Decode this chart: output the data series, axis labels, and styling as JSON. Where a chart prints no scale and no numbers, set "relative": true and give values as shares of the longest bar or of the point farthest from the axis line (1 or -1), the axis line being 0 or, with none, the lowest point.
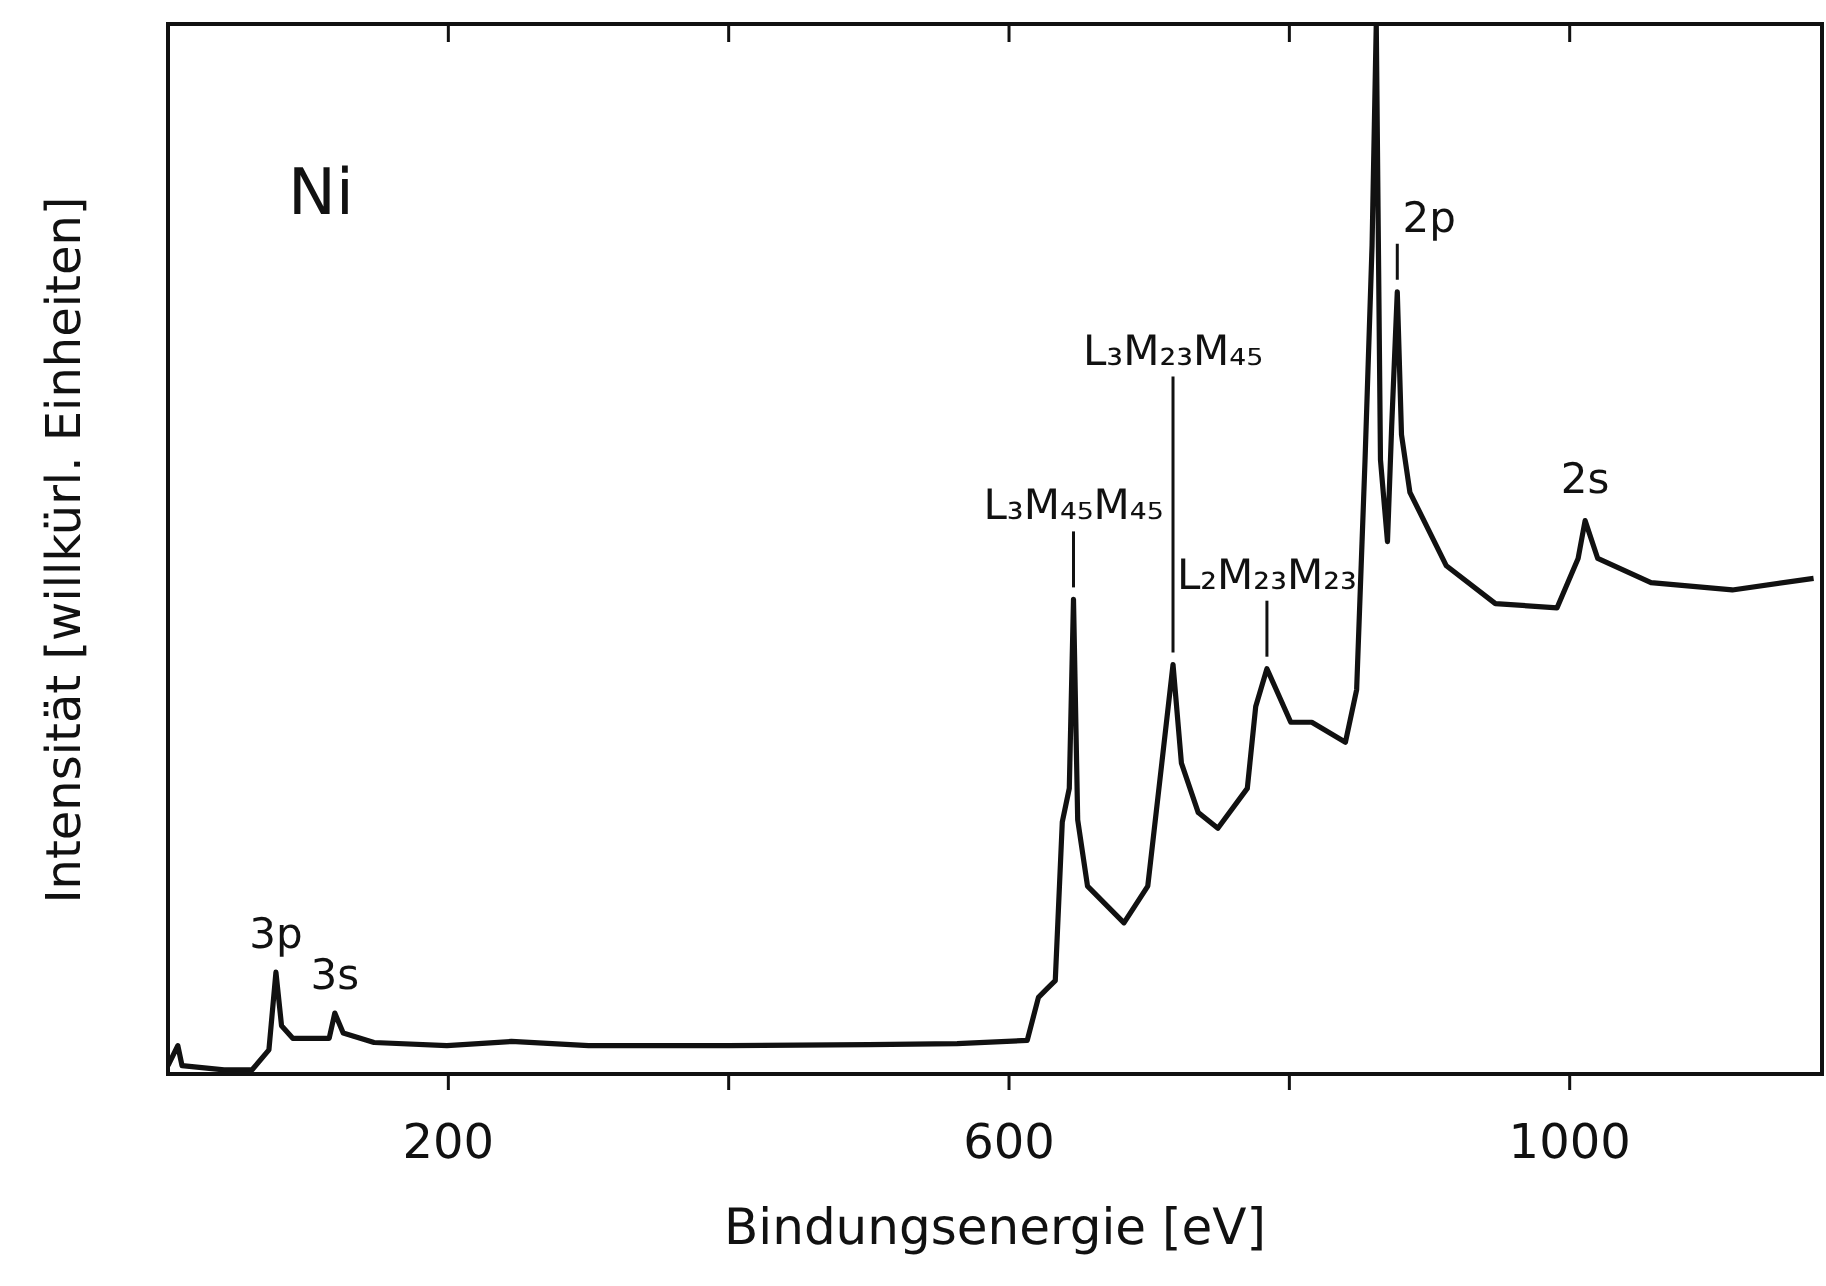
{
  "chart_data": {
    "type": "line",
    "relative": true,
    "xlabel": "Bindungsenergie [eV]",
    "ylabel": "Intensität [willkürl. Einheiten]",
    "x": [
      0,
      7,
      10,
      40,
      60,
      72,
      77,
      81,
      89,
      115,
      119,
      125,
      147,
      199,
      245,
      300,
      400,
      500,
      563,
      613,
      621,
      627,
      633,
      638,
      643,
      646,
      649,
      656,
      682,
      699,
      709,
      717,
      723,
      735,
      749,
      770,
      776,
      784,
      801,
      816,
      840,
      848,
      854,
      859,
      862,
      865,
      870,
      873,
      877,
      880,
      886,
      912,
      947,
      991,
      1006,
      1011,
      1020,
      1058,
      1116,
      1174
    ],
    "series": [
      {
        "color": "#111111",
        "values": [
          0.008,
          0.027,
          0.008,
          0.004,
          0.004,
          0.023,
          0.097,
          0.046,
          0.034,
          0.034,
          0.058,
          0.039,
          0.03,
          0.027,
          0.031,
          0.027,
          0.027,
          0.028,
          0.029,
          0.032,
          0.073,
          0.081,
          0.089,
          0.24,
          0.272,
          0.452,
          0.242,
          0.179,
          0.144,
          0.179,
          0.296,
          0.39,
          0.296,
          0.249,
          0.234,
          0.272,
          0.35,
          0.386,
          0.335,
          0.335,
          0.316,
          0.366,
          0.585,
          0.789,
          1.0,
          0.585,
          0.507,
          0.617,
          0.745,
          0.609,
          0.554,
          0.484,
          0.448,
          0.444,
          0.491,
          0.527,
          0.491,
          0.468,
          0.461,
          0.472
        ]
      }
    ],
    "xlim": [
      0,
      1180
    ],
    "xticks": [
      {
        "value": 200,
        "label": "200"
      },
      {
        "value": 400,
        "label": null
      },
      {
        "value": 600,
        "label": "600"
      },
      {
        "value": 800,
        "label": null
      },
      {
        "value": 1000,
        "label": "1000"
      }
    ],
    "marker": "none",
    "line_style": "solid",
    "annotations": [
      "Ni",
      {
        "text": "3p",
        "x": 77,
        "y": 0.097
      },
      {
        "text": "3s",
        "x": 119,
        "y": 0.058
      },
      {
        "text": "L₃M₄₅M₄₅",
        "x": 646,
        "y": 0.452
      },
      {
        "text": "L₃M₂₃M₄₅",
        "x": 717,
        "y": 0.39
      },
      {
        "text": "L₂M₂₃M₂₃",
        "x": 784,
        "y": 0.386
      },
      {
        "text": "2p",
        "x": 877,
        "y": 0.745
      },
      {
        "text": "2s",
        "x": 1011,
        "y": 0.527
      }
    ]
  }
}
